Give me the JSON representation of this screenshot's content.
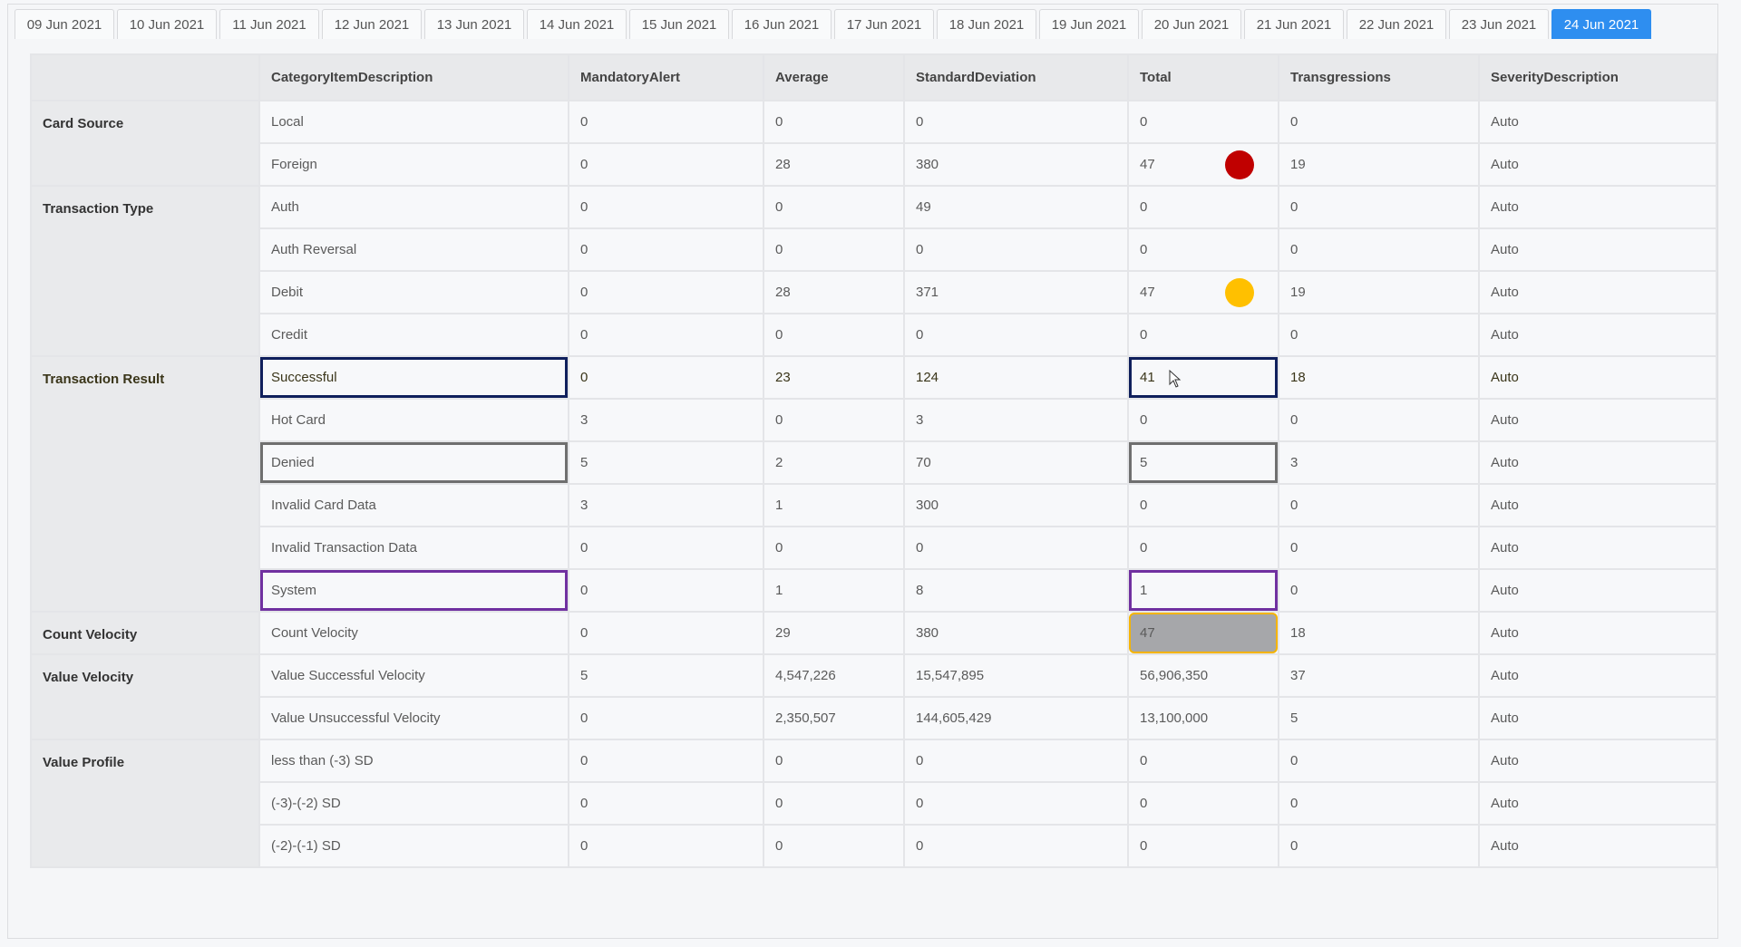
{
  "tabs": [
    "09 Jun 2021",
    "10 Jun 2021",
    "11 Jun 2021",
    "12 Jun 2021",
    "13 Jun 2021",
    "14 Jun 2021",
    "15 Jun 2021",
    "16 Jun 2021",
    "17 Jun 2021",
    "18 Jun 2021",
    "19 Jun 2021",
    "20 Jun 2021",
    "21 Jun 2021",
    "22 Jun 2021",
    "23 Jun 2021",
    "24 Jun 2021"
  ],
  "active_tab": "24 Jun 2021",
  "colors": {
    "active_tab": "#2e8ef0",
    "red_dot": "#c00000",
    "yellow_dot": "#ffc000",
    "navy_box": "#0f1f5c",
    "gray_box": "#6f6f6f",
    "purple_box": "#7030a0",
    "highlight_fill": "#a6a7aa",
    "highlight_border": "#f5b400"
  },
  "table": {
    "headers": [
      "",
      "CategoryItemDescription",
      "MandatoryAlert",
      "Average",
      "StandardDeviation",
      "Total",
      "Transgressions",
      "SeverityDescription"
    ],
    "groups": [
      {
        "name": "Card Source",
        "rows": [
          {
            "cells": [
              "Local",
              "0",
              "0",
              "0",
              "0",
              "0",
              "Auto"
            ]
          },
          {
            "cells": [
              "Foreign",
              "0",
              "28",
              "380",
              "47",
              "19",
              "Auto"
            ],
            "dot": "red"
          }
        ]
      },
      {
        "name": "Transaction Type",
        "rows": [
          {
            "cells": [
              "Auth",
              "0",
              "0",
              "49",
              "0",
              "0",
              "Auto"
            ]
          },
          {
            "cells": [
              "Auth Reversal",
              "0",
              "0",
              "0",
              "0",
              "0",
              "Auto"
            ]
          },
          {
            "cells": [
              "Debit",
              "0",
              "28",
              "371",
              "47",
              "19",
              "Auto"
            ],
            "dot": "yellow"
          },
          {
            "cells": [
              "Credit",
              "0",
              "0",
              "0",
              "0",
              "0",
              "Auto"
            ]
          }
        ]
      },
      {
        "name": "Transaction Result",
        "rows": [
          {
            "cells": [
              "Successful",
              "0",
              "23",
              "124",
              "41",
              "18",
              "Auto"
            ],
            "box": "navy",
            "cursor": true
          },
          {
            "cells": [
              "Hot Card",
              "3",
              "0",
              "3",
              "0",
              "0",
              "Auto"
            ]
          },
          {
            "cells": [
              "Denied",
              "5",
              "2",
              "70",
              "5",
              "3",
              "Auto"
            ],
            "box": "gray"
          },
          {
            "cells": [
              "Invalid Card Data",
              "3",
              "1",
              "300",
              "0",
              "0",
              "Auto"
            ]
          },
          {
            "cells": [
              "Invalid Transaction Data",
              "0",
              "0",
              "0",
              "0",
              "0",
              "Auto"
            ]
          },
          {
            "cells": [
              "System",
              "0",
              "1",
              "8",
              "1",
              "0",
              "Auto"
            ],
            "box": "purple"
          }
        ]
      },
      {
        "name": "Count Velocity",
        "rows": [
          {
            "cells": [
              "Count Velocity",
              "0",
              "29",
              "380",
              "47",
              "18",
              "Auto"
            ],
            "fill": true
          }
        ]
      },
      {
        "name": "Value Velocity",
        "rows": [
          {
            "cells": [
              "Value Successful Velocity",
              "5",
              "4,547,226",
              "15,547,895",
              "56,906,350",
              "37",
              "Auto"
            ]
          },
          {
            "cells": [
              "Value Unsuccessful Velocity",
              "0",
              "2,350,507",
              "144,605,429",
              "13,100,000",
              "5",
              "Auto"
            ]
          }
        ]
      },
      {
        "name": "Value Profile",
        "rows": [
          {
            "cells": [
              "less than (-3) SD",
              "0",
              "0",
              "0",
              "0",
              "0",
              "Auto"
            ]
          },
          {
            "cells": [
              "(-3)-(-2) SD",
              "0",
              "0",
              "0",
              "0",
              "0",
              "Auto"
            ]
          },
          {
            "cells": [
              "(-2)-(-1) SD",
              "0",
              "0",
              "0",
              "0",
              "0",
              "Auto"
            ]
          }
        ]
      }
    ]
  }
}
